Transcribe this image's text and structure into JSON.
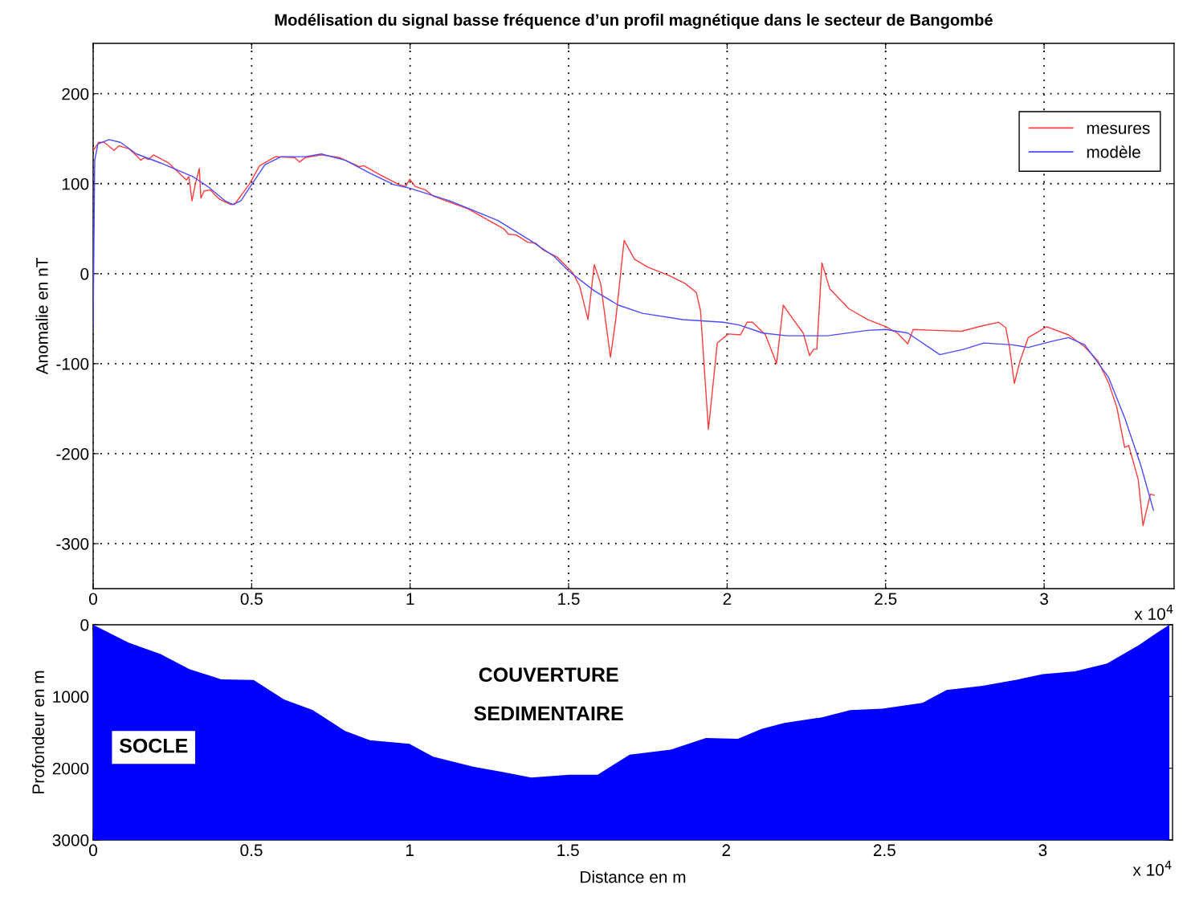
{
  "chart_data": [
    {
      "type": "line",
      "title": "Modélisation du signal basse fréquence d’un profil magnétique dans le secteur de Bangombé",
      "ylabel": "Anomalie en nT",
      "xlim": [
        0,
        3.41
      ],
      "ylim": [
        -350,
        256
      ],
      "xticks": [
        0,
        0.5,
        1,
        1.5,
        2,
        2.5,
        3
      ],
      "yticks": [
        -300,
        -200,
        -100,
        0,
        100,
        200
      ],
      "grid": true,
      "legend": "top right",
      "line_style": "solid",
      "marker": "none",
      "annotations": [
        "x 10$^{4}$"
      ],
      "series": [
        {
          "name": "mesures",
          "color": "#ff3b3b",
          "x": [
            0.0025,
            0.018,
            0.035,
            0.066,
            0.081,
            0.112,
            0.137,
            0.15,
            0.162,
            0.175,
            0.19,
            0.238,
            0.271,
            0.294,
            0.302,
            0.312,
            0.322,
            0.335,
            0.34,
            0.35,
            0.37,
            0.383,
            0.398,
            0.433,
            0.446,
            0.492,
            0.525,
            0.575,
            0.636,
            0.651,
            0.669,
            0.72,
            0.778,
            0.839,
            0.854,
            0.905,
            0.965,
            0.986,
            0.999,
            1.016,
            1.049,
            1.074,
            1.183,
            1.295,
            1.31,
            1.335,
            1.371,
            1.396,
            1.421,
            1.462,
            1.513,
            1.535,
            1.561,
            1.581,
            1.601,
            1.632,
            1.649,
            1.675,
            1.708,
            1.751,
            1.817,
            1.868,
            1.903,
            1.916,
            1.941,
            1.969,
            2.004,
            2.042,
            2.063,
            2.08,
            2.121,
            2.156,
            2.177,
            2.207,
            2.24,
            2.26,
            2.273,
            2.283,
            2.299,
            2.324,
            2.384,
            2.443,
            2.501,
            2.537,
            2.57,
            2.587,
            2.653,
            2.739,
            2.805,
            2.856,
            2.879,
            2.891,
            2.906,
            2.924,
            2.95,
            3.008,
            3.077,
            3.127,
            3.17,
            3.203,
            3.229,
            3.254,
            3.267,
            3.297,
            3.312,
            3.335,
            3.347
          ],
          "values": [
            138,
            146,
            146,
            137,
            142,
            139,
            131,
            126,
            129,
            127,
            132,
            123,
            112,
            104,
            108,
            81,
            99,
            117,
            84,
            92,
            93,
            88,
            83,
            77,
            77,
            99,
            120,
            130,
            129,
            124,
            129,
            132,
            129,
            119,
            120,
            110,
            99,
            97,
            105,
            97,
            93,
            86,
            72,
            50,
            44,
            43,
            35,
            34,
            26,
            19,
            1,
            -14,
            -51,
            10,
            -11,
            -93,
            -50,
            37,
            16,
            7,
            -2,
            -11,
            -21,
            -41,
            -173,
            -77,
            -67,
            -68,
            -54,
            -54,
            -68,
            -100,
            -35,
            -50,
            -66,
            -91,
            -84,
            -84,
            12,
            -17,
            -39,
            -51,
            -59,
            -66,
            -78,
            -62,
            -63,
            -64,
            -58,
            -54,
            -60,
            -82,
            -122,
            -97,
            -71,
            -59,
            -68,
            -81,
            -97,
            -121,
            -148,
            -193,
            -191,
            -229,
            -280,
            -245,
            -246
          ]
        },
        {
          "name": "modèle",
          "color": "#4a4aff",
          "x": [
            0,
            0.005,
            0.015,
            0.05,
            0.086,
            0.137,
            0.213,
            0.314,
            0.365,
            0.416,
            0.441,
            0.466,
            0.5,
            0.542,
            0.593,
            0.669,
            0.72,
            0.796,
            0.872,
            0.948,
            0.999,
            1.125,
            1.277,
            1.379,
            1.455,
            1.5,
            1.581,
            1.657,
            1.733,
            1.86,
            1.987,
            2.037,
            2.113,
            2.189,
            2.316,
            2.443,
            2.501,
            2.57,
            2.671,
            2.747,
            2.81,
            2.899,
            2.95,
            3.026,
            3.077,
            3.128,
            3.203,
            3.254,
            3.305,
            3.345
          ],
          "values": [
            -60,
            126,
            144,
            149,
            146,
            133,
            123,
            108,
            96,
            81,
            77,
            81,
            99,
            121,
            130,
            130,
            133,
            126,
            112,
            99,
            95,
            81,
            59,
            37,
            19,
            3,
            -19,
            -35,
            -44,
            -51,
            -54,
            -57,
            -66,
            -69,
            -69,
            -63,
            -62,
            -66,
            -90,
            -84,
            -77,
            -79,
            -82,
            -75,
            -71,
            -79,
            -115,
            -160,
            -213,
            -263
          ]
        }
      ]
    },
    {
      "type": "area",
      "xlabel": "Distance en m",
      "ylabel": "Profondeur en m",
      "xlim": [
        0,
        3.41
      ],
      "ylim": [
        3000,
        0
      ],
      "xticks": [
        0,
        0.5,
        1,
        1.5,
        2,
        2.5,
        3
      ],
      "yticks": [
        0,
        1000,
        2000,
        3000
      ],
      "grid": false,
      "stacked": true,
      "annotations": [
        "COUVERTURE",
        "SEDIMENTAIRE",
        "SOCLE",
        "x 10$^{4}$"
      ],
      "series": [
        {
          "color": "#ffffff",
          "x": [
            0,
            0.112,
            0.213,
            0.304,
            0.405,
            0.507,
            0.603,
            0.694,
            0.796,
            0.874,
            0.999,
            1.074,
            1.201,
            1.303,
            1.384,
            1.505,
            1.594,
            1.695,
            1.825,
            1.936,
            2.037,
            2.113,
            2.184,
            2.303,
            2.392,
            2.493,
            2.62,
            2.696,
            2.81,
            2.924,
            3.0,
            3.102,
            3.203,
            3.305,
            3.355,
            3.4
          ],
          "values": [
            0,
            250,
            410,
            620,
            760,
            770,
            1040,
            1190,
            1480,
            1610,
            1660,
            1840,
            1980,
            2060,
            2130,
            2090,
            2090,
            1810,
            1740,
            1580,
            1590,
            1450,
            1370,
            1290,
            1190,
            1170,
            1090,
            910,
            850,
            760,
            690,
            650,
            540,
            280,
            130,
            0
          ]
        },
        {
          "color": "#0000ff",
          "x": [
            0,
            0.112,
            0.213,
            0.304,
            0.405,
            0.507,
            0.603,
            0.694,
            0.796,
            0.874,
            0.999,
            1.074,
            1.201,
            1.303,
            1.384,
            1.505,
            1.594,
            1.695,
            1.825,
            1.936,
            2.037,
            2.113,
            2.184,
            2.303,
            2.392,
            2.493,
            2.62,
            2.696,
            2.81,
            2.924,
            3.0,
            3.102,
            3.203,
            3.305,
            3.355,
            3.4
          ],
          "values": [
            3000,
            2750,
            2590,
            2380,
            2240,
            2230,
            1960,
            1810,
            1520,
            1390,
            1340,
            1160,
            1020,
            940,
            870,
            910,
            910,
            1190,
            1260,
            1420,
            1410,
            1550,
            1630,
            1710,
            1810,
            1830,
            1910,
            2090,
            2150,
            2240,
            2310,
            2350,
            2460,
            2720,
            2870,
            3000
          ]
        }
      ]
    }
  ]
}
